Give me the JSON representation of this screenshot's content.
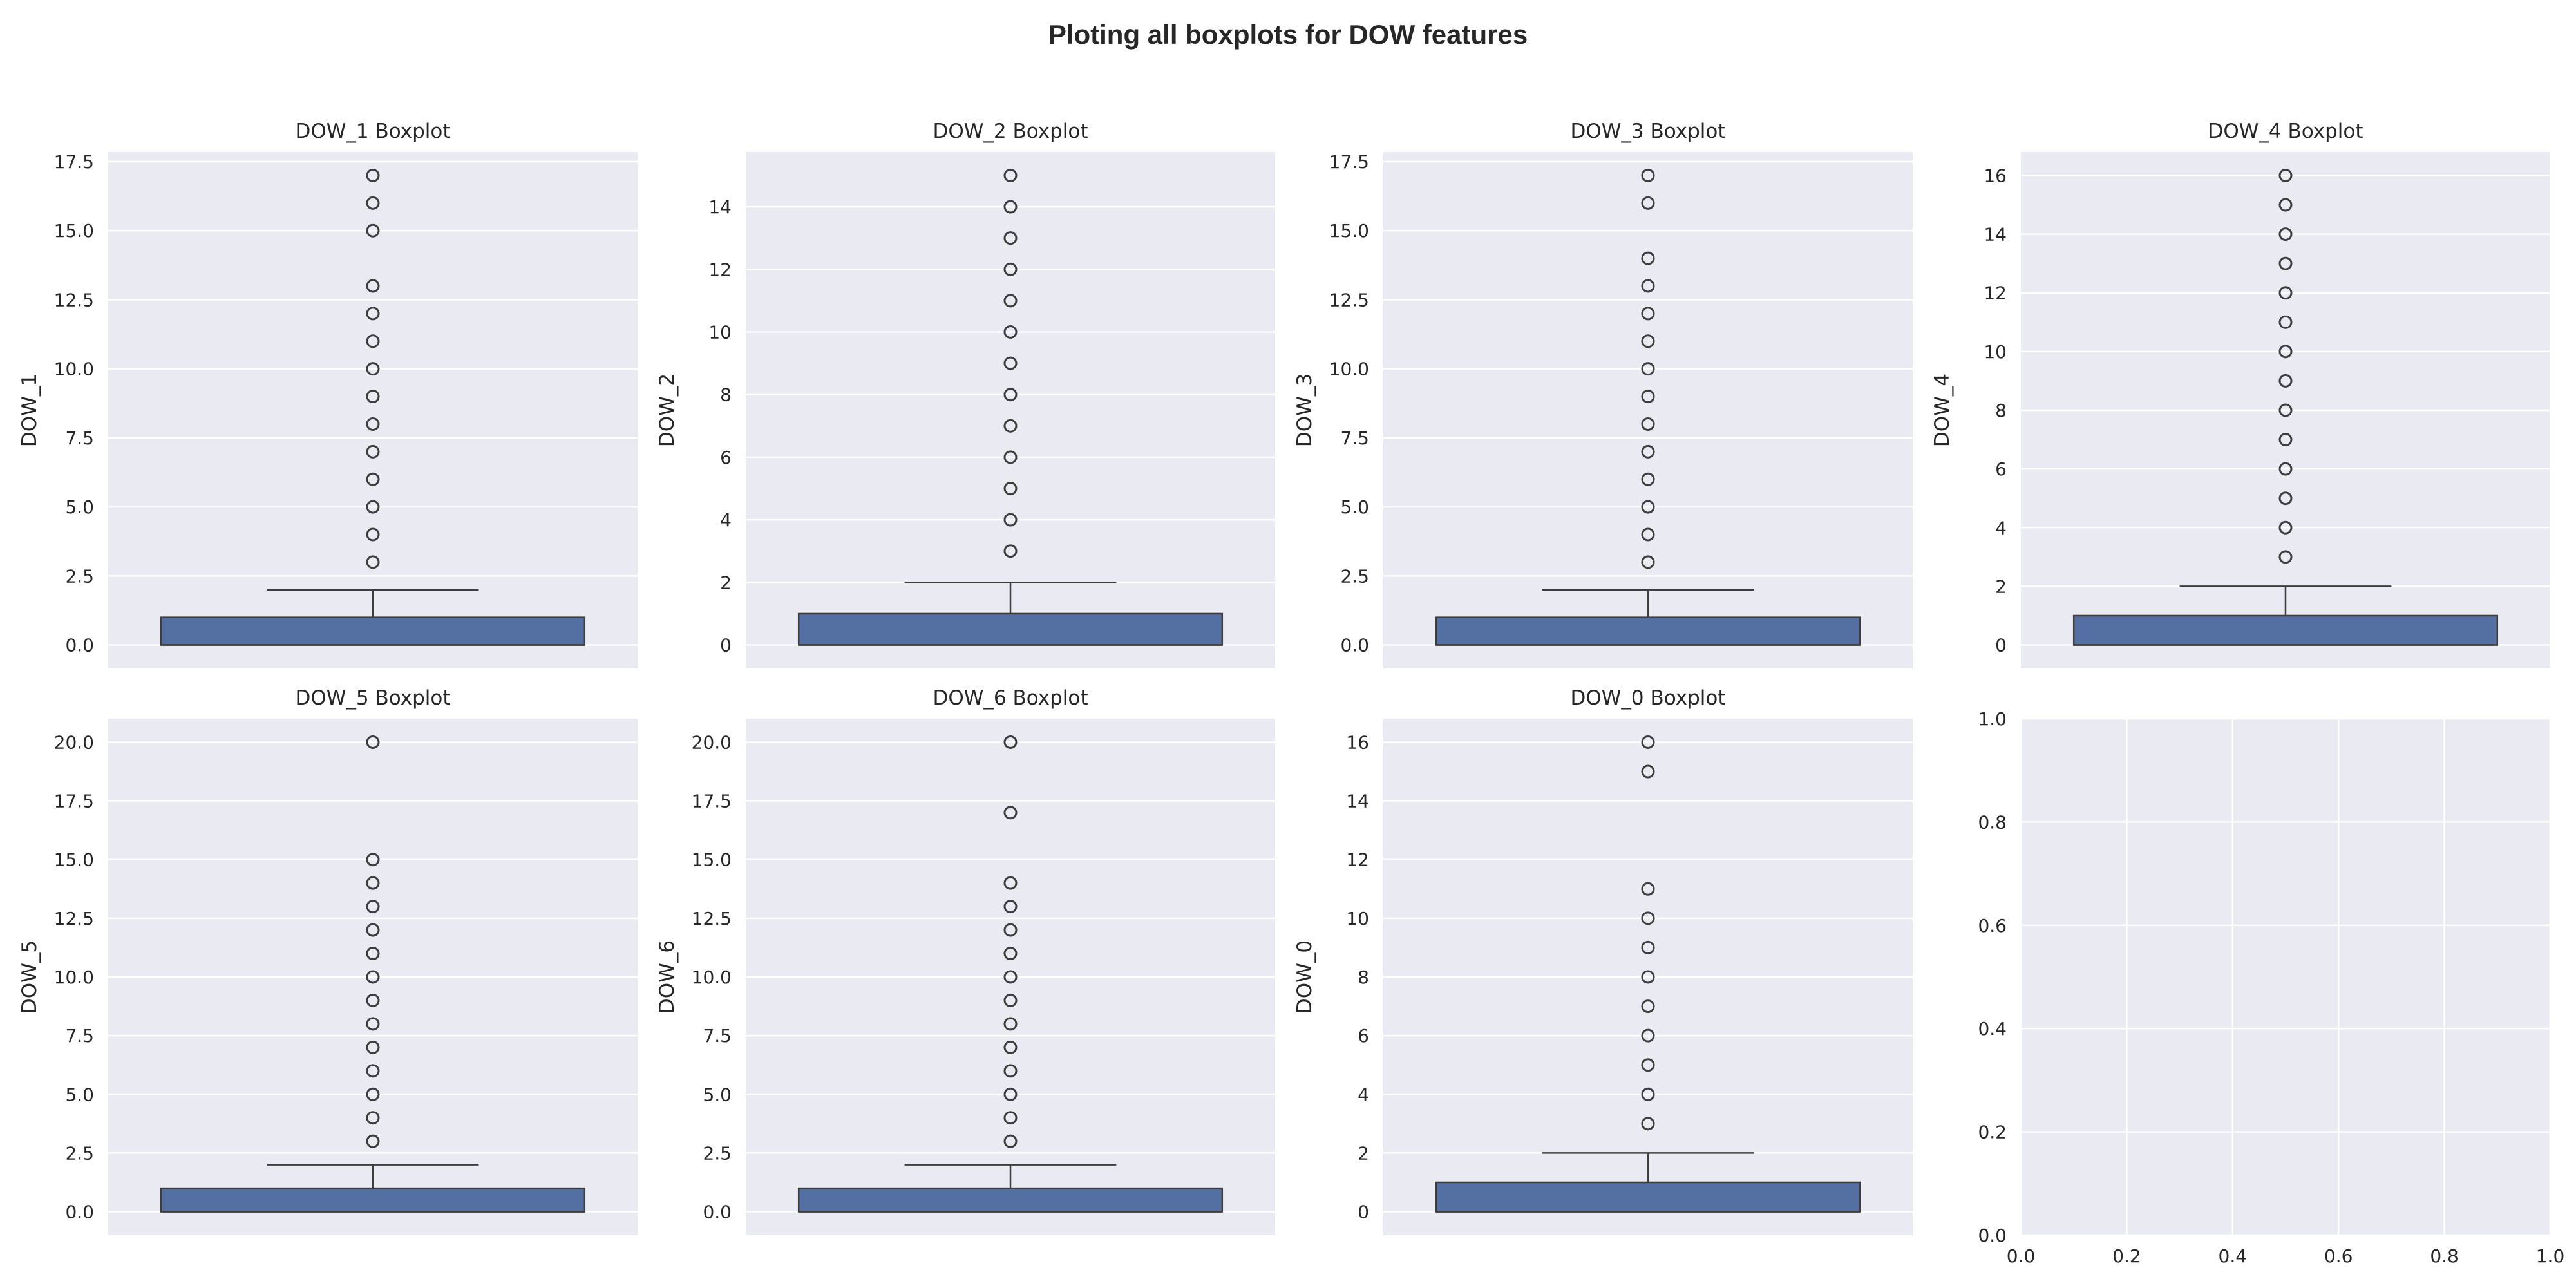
{
  "figure": {
    "title": "Ploting all boxplots for DOW features",
    "background": "#ffffff",
    "panel_background": "#eaeaf2",
    "grid_color": "#ffffff",
    "box_color": "#5470a3",
    "line_color": "#3d3d3d"
  },
  "chart_data": [
    {
      "type": "boxplot",
      "title": "DOW_1 Boxplot",
      "ylabel": "DOW_1",
      "ylim": [
        -0.85,
        17.85
      ],
      "yticks": [
        0,
        2.5,
        5,
        7.5,
        10,
        12.5,
        15,
        17.5
      ],
      "yticklabels": [
        "0.0",
        "2.5",
        "5.0",
        "7.5",
        "10.0",
        "12.5",
        "15.0",
        "17.5"
      ],
      "box": {
        "q1": 0,
        "median": 0,
        "q3": 1,
        "whisker_low": 0,
        "whisker_high": 2
      },
      "outliers": [
        3,
        4,
        5,
        6,
        7,
        8,
        9,
        10,
        11,
        12,
        13,
        15,
        16,
        17
      ],
      "grid": true
    },
    {
      "type": "boxplot",
      "title": "DOW_2 Boxplot",
      "ylabel": "DOW_2",
      "ylim": [
        -0.75,
        15.75
      ],
      "yticks": [
        0,
        2,
        4,
        6,
        8,
        10,
        12,
        14
      ],
      "yticklabels": [
        "0",
        "2",
        "4",
        "6",
        "8",
        "10",
        "12",
        "14"
      ],
      "box": {
        "q1": 0,
        "median": 0,
        "q3": 1,
        "whisker_low": 0,
        "whisker_high": 2
      },
      "outliers": [
        3,
        4,
        5,
        6,
        7,
        8,
        9,
        10,
        11,
        12,
        13,
        14,
        15
      ],
      "grid": true
    },
    {
      "type": "boxplot",
      "title": "DOW_3 Boxplot",
      "ylabel": "DOW_3",
      "ylim": [
        -0.85,
        17.85
      ],
      "yticks": [
        0,
        2.5,
        5,
        7.5,
        10,
        12.5,
        15,
        17.5
      ],
      "yticklabels": [
        "0.0",
        "2.5",
        "5.0",
        "7.5",
        "10.0",
        "12.5",
        "15.0",
        "17.5"
      ],
      "box": {
        "q1": 0,
        "median": 0,
        "q3": 1,
        "whisker_low": 0,
        "whisker_high": 2
      },
      "outliers": [
        3,
        4,
        5,
        6,
        7,
        8,
        9,
        10,
        11,
        12,
        13,
        14,
        16,
        17
      ],
      "grid": true
    },
    {
      "type": "boxplot",
      "title": "DOW_4 Boxplot",
      "ylabel": "DOW_4",
      "ylim": [
        -0.8,
        16.8
      ],
      "yticks": [
        0,
        2,
        4,
        6,
        8,
        10,
        12,
        14,
        16
      ],
      "yticklabels": [
        "0",
        "2",
        "4",
        "6",
        "8",
        "10",
        "12",
        "14",
        "16"
      ],
      "box": {
        "q1": 0,
        "median": 0,
        "q3": 1,
        "whisker_low": 0,
        "whisker_high": 2
      },
      "outliers": [
        3,
        4,
        5,
        6,
        7,
        8,
        9,
        10,
        11,
        12,
        13,
        14,
        15,
        16
      ],
      "grid": true
    },
    {
      "type": "boxplot",
      "title": "DOW_5 Boxplot",
      "ylabel": "DOW_5",
      "ylim": [
        -1.0,
        21.0
      ],
      "yticks": [
        0,
        2.5,
        5,
        7.5,
        10,
        12.5,
        15,
        17.5,
        20
      ],
      "yticklabels": [
        "0.0",
        "2.5",
        "5.0",
        "7.5",
        "10.0",
        "12.5",
        "15.0",
        "17.5",
        "20.0"
      ],
      "box": {
        "q1": 0,
        "median": 0,
        "q3": 1,
        "whisker_low": 0,
        "whisker_high": 2
      },
      "outliers": [
        3,
        4,
        5,
        6,
        7,
        8,
        9,
        10,
        11,
        12,
        13,
        14,
        15,
        20
      ],
      "grid": true
    },
    {
      "type": "boxplot",
      "title": "DOW_6 Boxplot",
      "ylabel": "DOW_6",
      "ylim": [
        -1.0,
        21.0
      ],
      "yticks": [
        0,
        2.5,
        5,
        7.5,
        10,
        12.5,
        15,
        17.5,
        20
      ],
      "yticklabels": [
        "0.0",
        "2.5",
        "5.0",
        "7.5",
        "10.0",
        "12.5",
        "15.0",
        "17.5",
        "20.0"
      ],
      "box": {
        "q1": 0,
        "median": 0,
        "q3": 1,
        "whisker_low": 0,
        "whisker_high": 2
      },
      "outliers": [
        3,
        4,
        5,
        6,
        7,
        8,
        9,
        10,
        11,
        12,
        13,
        14,
        17,
        20
      ],
      "grid": true
    },
    {
      "type": "boxplot",
      "title": "DOW_0 Boxplot",
      "ylabel": "DOW_0",
      "ylim": [
        -0.8,
        16.8
      ],
      "yticks": [
        0,
        2,
        4,
        6,
        8,
        10,
        12,
        14,
        16
      ],
      "yticklabels": [
        "0",
        "2",
        "4",
        "6",
        "8",
        "10",
        "12",
        "14",
        "16"
      ],
      "box": {
        "q1": 0,
        "median": 0,
        "q3": 1,
        "whisker_low": 0,
        "whisker_high": 2
      },
      "outliers": [
        3,
        4,
        5,
        6,
        7,
        8,
        9,
        10,
        11,
        15,
        16
      ],
      "grid": true
    },
    {
      "type": "empty",
      "title": "",
      "ylabel": "",
      "xlim": [
        0,
        1
      ],
      "ylim": [
        0,
        1
      ],
      "xticks": [
        0,
        0.2,
        0.4,
        0.6,
        0.8,
        1.0
      ],
      "xticklabels": [
        "0.0",
        "0.2",
        "0.4",
        "0.6",
        "0.8",
        "1.0"
      ],
      "yticks": [
        0,
        0.2,
        0.4,
        0.6,
        0.8,
        1.0
      ],
      "yticklabels": [
        "0.0",
        "0.2",
        "0.4",
        "0.6",
        "0.8",
        "1.0"
      ],
      "grid": true
    }
  ]
}
